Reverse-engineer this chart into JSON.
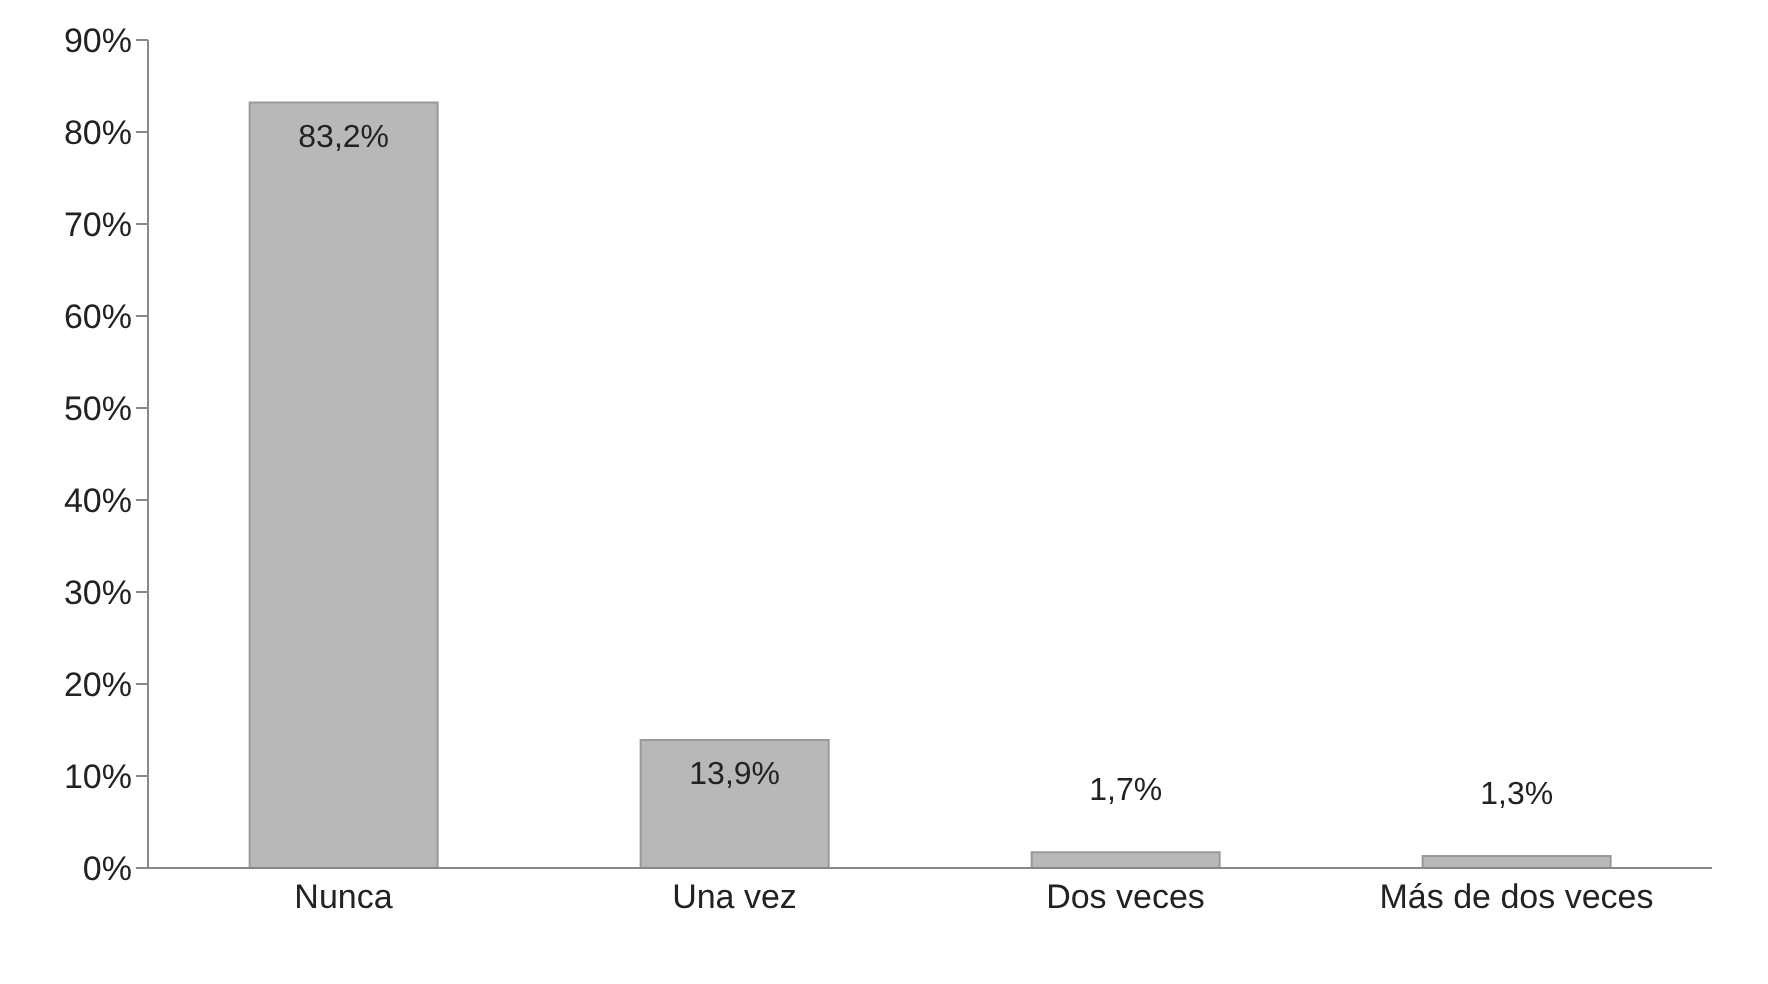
{
  "chart_data": {
    "type": "bar",
    "categories": [
      "Nunca",
      "Una vez",
      "Dos veces",
      "Más de dos veces"
    ],
    "values": [
      83.2,
      13.9,
      1.7,
      1.3
    ],
    "value_labels": [
      "83,2%",
      "13,9%",
      "1,7%",
      "1,3%"
    ],
    "color": "#b8b8b8",
    "ylim": [
      0,
      90
    ],
    "yticks": [
      {
        "value": 0,
        "label": "0%"
      },
      {
        "value": 10,
        "label": "10%"
      },
      {
        "value": 20,
        "label": "20%"
      },
      {
        "value": 30,
        "label": "30%"
      },
      {
        "value": 40,
        "label": "40%"
      },
      {
        "value": 50,
        "label": "50%"
      },
      {
        "value": 60,
        "label": "60%"
      },
      {
        "value": 70,
        "label": "70%"
      },
      {
        "value": 80,
        "label": "80%"
      },
      {
        "value": 90,
        "label": "90%"
      }
    ],
    "grid": false,
    "legend": false
  }
}
